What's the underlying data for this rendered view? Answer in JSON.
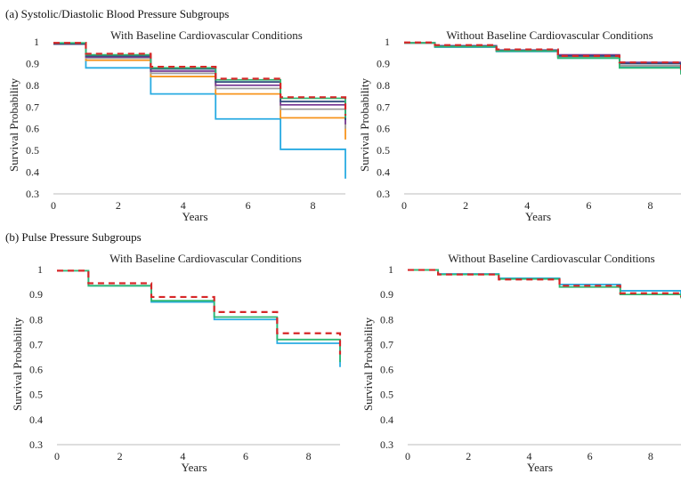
{
  "labels": {
    "section_a": "(a)  Systolic/Diastolic Blood Pressure Subgroups",
    "section_b": "(b)  Pulse Pressure Subgroups"
  },
  "chart_data": [
    {
      "type": "line",
      "step": true,
      "title": "With Baseline Cardiovascular Conditions",
      "xlabel": "Years",
      "ylabel": "Survival Probability",
      "xlim": [
        0,
        9
      ],
      "ylim": [
        0.3,
        1
      ],
      "xticks": [
        0,
        2,
        4,
        6,
        8
      ],
      "yticks": [
        0.3,
        0.4,
        0.5,
        0.6,
        0.7,
        0.8,
        0.9,
        1
      ],
      "x": [
        0,
        1,
        3,
        5,
        7,
        9
      ],
      "series": [
        {
          "color": "#29abe2",
          "dashed": false,
          "values": [
            0.99,
            0.88,
            0.76,
            0.645,
            0.505,
            0.37
          ]
        },
        {
          "color": "#f7941d",
          "dashed": false,
          "values": [
            0.99,
            0.915,
            0.84,
            0.76,
            0.65,
            0.55
          ]
        },
        {
          "color": "#a0a0a0",
          "dashed": false,
          "values": [
            0.99,
            0.925,
            0.855,
            0.785,
            0.69,
            0.6
          ]
        },
        {
          "color": "#7b3f98",
          "dashed": false,
          "values": [
            0.99,
            0.93,
            0.865,
            0.8,
            0.71,
            0.62
          ]
        },
        {
          "color": "#2f4b7c",
          "dashed": false,
          "values": [
            0.99,
            0.935,
            0.875,
            0.815,
            0.725,
            0.64
          ]
        },
        {
          "color": "#d62728",
          "dashed": true,
          "values": [
            0.995,
            0.945,
            0.885,
            0.83,
            0.745,
            0.66
          ]
        },
        {
          "color": "#2eb872",
          "dashed": false,
          "values": [
            0.995,
            0.94,
            0.88,
            0.825,
            0.74,
            0.65
          ]
        }
      ]
    },
    {
      "type": "line",
      "step": true,
      "title": "Without Baseline Cardiovascular Conditions",
      "xlabel": "Years",
      "ylabel": "Survival Probability",
      "xlim": [
        0,
        9
      ],
      "ylim": [
        0.3,
        1
      ],
      "xticks": [
        0,
        2,
        4,
        6,
        8
      ],
      "yticks": [
        0.3,
        0.4,
        0.5,
        0.6,
        0.7,
        0.8,
        0.9,
        1
      ],
      "x": [
        0,
        1,
        3,
        5,
        7,
        9
      ],
      "series": [
        {
          "color": "#29abe2",
          "dashed": false,
          "values": [
            0.995,
            0.975,
            0.955,
            0.925,
            0.885,
            0.85
          ]
        },
        {
          "color": "#f7941d",
          "dashed": false,
          "values": [
            0.995,
            0.978,
            0.958,
            0.93,
            0.89,
            0.85
          ]
        },
        {
          "color": "#a0a0a0",
          "dashed": false,
          "values": [
            0.995,
            0.978,
            0.958,
            0.93,
            0.89,
            0.85
          ]
        },
        {
          "color": "#7b3f98",
          "dashed": false,
          "values": [
            0.995,
            0.982,
            0.962,
            0.94,
            0.905,
            0.87
          ]
        },
        {
          "color": "#2f4b7c",
          "dashed": false,
          "values": [
            0.995,
            0.98,
            0.96,
            0.935,
            0.9,
            0.86
          ]
        },
        {
          "color": "#d62728",
          "dashed": true,
          "values": [
            0.997,
            0.985,
            0.965,
            0.935,
            0.905,
            0.87
          ]
        },
        {
          "color": "#2eb872",
          "dashed": false,
          "values": [
            0.995,
            0.978,
            0.958,
            0.925,
            0.88,
            0.85
          ]
        }
      ]
    },
    {
      "type": "line",
      "step": true,
      "title": "With Baseline Cardiovascular Conditions",
      "xlabel": "Years",
      "ylabel": "Survival Probability",
      "xlim": [
        0,
        9
      ],
      "ylim": [
        0.3,
        1
      ],
      "xticks": [
        0,
        2,
        4,
        6,
        8
      ],
      "yticks": [
        0.3,
        0.4,
        0.5,
        0.6,
        0.7,
        0.8,
        0.9,
        1
      ],
      "x": [
        0,
        1,
        3,
        5,
        7,
        9
      ],
      "series": [
        {
          "color": "#29abe2",
          "dashed": false,
          "values": [
            0.995,
            0.935,
            0.87,
            0.8,
            0.705,
            0.61
          ]
        },
        {
          "color": "#d62728",
          "dashed": true,
          "values": [
            0.995,
            0.945,
            0.89,
            0.83,
            0.745,
            0.66
          ]
        },
        {
          "color": "#2eb872",
          "dashed": false,
          "values": [
            0.995,
            0.935,
            0.875,
            0.81,
            0.72,
            0.63
          ]
        }
      ]
    },
    {
      "type": "line",
      "step": true,
      "title": "Without Baseline Cardiovascular Conditions",
      "xlabel": "Years",
      "ylabel": "Survival Probability",
      "xlim": [
        0,
        9
      ],
      "ylim": [
        0.3,
        1
      ],
      "xticks": [
        0,
        2,
        4,
        6,
        8
      ],
      "yticks": [
        0.3,
        0.4,
        0.5,
        0.6,
        0.7,
        0.8,
        0.9,
        1
      ],
      "x": [
        0,
        1,
        3,
        5,
        7,
        9
      ],
      "series": [
        {
          "color": "#29abe2",
          "dashed": false,
          "values": [
            0.998,
            0.982,
            0.965,
            0.94,
            0.915,
            0.9
          ]
        },
        {
          "color": "#d62728",
          "dashed": true,
          "values": [
            0.998,
            0.98,
            0.96,
            0.935,
            0.905,
            0.89
          ]
        },
        {
          "color": "#2eb872",
          "dashed": false,
          "values": [
            0.998,
            0.98,
            0.962,
            0.93,
            0.9,
            0.885
          ]
        }
      ]
    }
  ]
}
